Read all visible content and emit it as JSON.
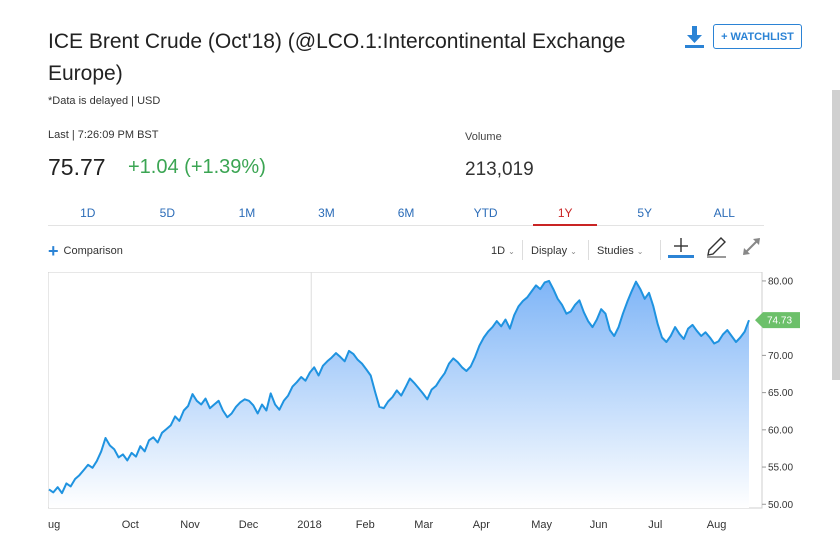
{
  "header": {
    "title": "ICE Brent Crude (Oct'18) (@LCO.1:Intercontinental Exchange Europe)",
    "delayed_note": "*Data is delayed | USD",
    "watchlist_label": "+ WATCHLIST",
    "download_icon": "download-icon"
  },
  "quote": {
    "last_label": "Last | 7:26:09 PM BST",
    "last_price": "75.77",
    "change": "+1.04 (+1.39%)",
    "change_color": "#3ba553",
    "volume_label": "Volume",
    "volume_value": "213,019"
  },
  "range_tabs": {
    "items": [
      "1D",
      "5D",
      "1M",
      "3M",
      "6M",
      "YTD",
      "1Y",
      "5Y",
      "ALL"
    ],
    "active": "1Y",
    "active_color": "#c92424",
    "tab_color": "#2b6cb8"
  },
  "toolbar": {
    "comparison_label": "Comparison",
    "interval_label": "1D",
    "display_label": "Display",
    "studies_label": "Studies",
    "icons": [
      "crosshair-icon",
      "pencil-icon",
      "expand-icon"
    ]
  },
  "chart_data": {
    "type": "area",
    "series": [
      {
        "values": [
          52.0,
          51.6,
          52.3,
          51.5,
          52.8,
          52.4,
          53.4,
          53.9,
          54.6,
          55.3,
          54.9,
          55.8,
          57.1,
          58.9,
          57.9,
          57.4,
          56.3,
          56.7,
          55.9,
          56.9,
          56.4,
          57.8,
          57.1,
          58.6,
          59.0,
          58.3,
          59.6,
          60.1,
          60.6,
          61.8,
          61.2,
          62.6,
          63.2,
          64.8,
          63.9,
          63.4,
          64.2,
          62.9,
          63.4,
          63.9,
          62.6,
          61.7,
          62.2,
          63.1,
          63.7,
          64.1,
          63.9,
          63.3,
          62.2,
          63.4,
          62.6,
          64.9,
          63.4,
          62.7,
          63.9,
          64.6,
          65.8,
          66.4,
          67.1,
          66.6,
          67.7,
          68.4,
          67.3,
          68.6,
          69.2,
          69.7,
          70.3,
          69.8,
          69.2,
          70.6,
          70.2,
          69.4,
          68.9,
          68.1,
          67.3,
          65.1,
          63.1,
          62.9,
          63.8,
          64.4,
          65.3,
          64.6,
          65.7,
          66.9,
          66.3,
          65.6,
          64.9,
          64.1,
          65.4,
          65.9,
          66.8,
          67.6,
          68.9,
          69.6,
          69.1,
          68.4,
          67.9,
          68.5,
          69.8,
          71.3,
          72.4,
          73.2,
          73.8,
          74.6,
          73.9,
          74.8,
          73.6,
          75.4,
          76.6,
          77.3,
          77.8,
          78.6,
          79.4,
          78.9,
          79.8,
          80.0,
          78.9,
          77.6,
          76.8,
          75.6,
          75.9,
          76.8,
          77.4,
          75.8,
          74.6,
          73.8,
          74.8,
          76.2,
          75.6,
          73.4,
          72.6,
          73.8,
          75.6,
          77.2,
          78.6,
          79.9,
          78.9,
          77.6,
          78.4,
          76.6,
          74.2,
          72.4,
          71.8,
          72.6,
          73.8,
          72.9,
          72.2,
          73.6,
          74.1,
          73.3,
          72.6,
          73.1,
          72.4,
          71.6,
          71.9,
          72.8,
          73.4,
          72.6,
          71.8,
          72.4,
          73.2,
          74.73
        ],
        "color": "#1f93e0"
      }
    ],
    "x_tick_labels": [
      "ug",
      "Oct",
      "Nov",
      "Dec",
      "2018",
      "Feb",
      "Mar",
      "Apr",
      "May",
      "Jun",
      "Jul",
      "Aug"
    ],
    "y_tick_labels": [
      "80.00",
      "75.00",
      "70.00",
      "65.00",
      "60.00",
      "55.00",
      "50.00"
    ],
    "ylim": [
      49.5,
      81.2
    ],
    "last_value_label": "74.73",
    "last_value_color": "#6cc06a"
  }
}
